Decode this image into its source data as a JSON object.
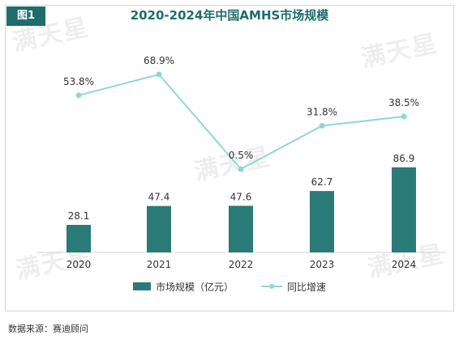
{
  "figure_tag": "图1",
  "watermark_text": "满天星",
  "source_text": "数据来源：赛迪顾问",
  "colors": {
    "bar": "#2a7a77",
    "line": "#8fd8d2",
    "title": "#1f6d6b"
  },
  "chart_data": {
    "type": "bar",
    "title": "2020-2024年中国AMHS市场规模",
    "categories": [
      "2020",
      "2021",
      "2022",
      "2023",
      "2024"
    ],
    "series": [
      {
        "name": "市场规模（亿元）",
        "type": "bar",
        "axis": "left",
        "values": [
          28.1,
          47.4,
          47.6,
          62.7,
          86.9
        ],
        "labels": [
          "28.1",
          "47.4",
          "47.6",
          "62.7",
          "86.9"
        ]
      },
      {
        "name": "同比增速",
        "type": "line",
        "axis": "right",
        "values": [
          53.8,
          68.9,
          0.5,
          31.8,
          38.5
        ],
        "labels": [
          "53.8%",
          "68.9%",
          "0.5%",
          "31.8%",
          "38.5%"
        ]
      }
    ],
    "xlabel": "",
    "ylabel": "",
    "legend_position": "bottom",
    "grid": false
  }
}
